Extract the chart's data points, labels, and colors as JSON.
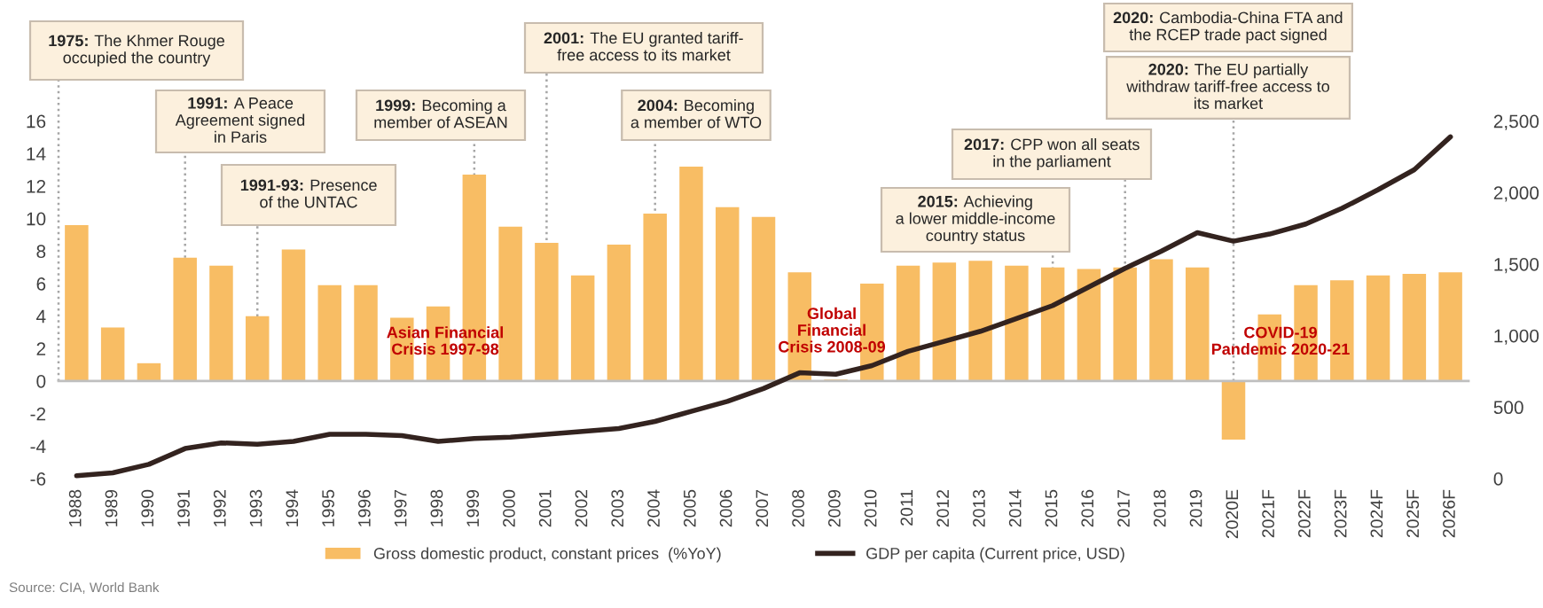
{
  "chart_data": {
    "type": "bar",
    "categories": [
      "1988",
      "1989",
      "1990",
      "1991",
      "1992",
      "1993",
      "1994",
      "1995",
      "1996",
      "1997",
      "1998",
      "1999",
      "2000",
      "2001",
      "2002",
      "2003",
      "2004",
      "2005",
      "2006",
      "2007",
      "2008",
      "2009",
      "2010",
      "2011",
      "2012",
      "2013",
      "2014",
      "2015",
      "2016",
      "2017",
      "2018",
      "2019",
      "2020E",
      "2021F",
      "2022F",
      "2023F",
      "2024F",
      "2025F",
      "2026F"
    ],
    "series": [
      {
        "name": "Gross domestic product, constant prices  (%YoY)",
        "color": "#f8bd64",
        "values": [
          9.6,
          3.3,
          1.1,
          7.6,
          7.1,
          4.0,
          8.1,
          5.9,
          5.9,
          3.9,
          4.6,
          12.7,
          9.5,
          8.5,
          6.5,
          8.4,
          10.3,
          13.2,
          10.7,
          10.1,
          6.7,
          0.1,
          6.0,
          7.1,
          7.3,
          7.4,
          7.1,
          7.0,
          6.9,
          7.0,
          7.5,
          7.0,
          -3.6,
          4.1,
          5.9,
          6.2,
          6.5,
          6.6,
          6.7
        ]
      },
      {
        "name": "GDP per capita (Current price, USD)",
        "type": "line",
        "axis": "y2",
        "color": "#33231f",
        "values": [
          20,
          40,
          100,
          210,
          250,
          240,
          260,
          310,
          310,
          300,
          260,
          280,
          290,
          310,
          330,
          350,
          400,
          470,
          540,
          630,
          740,
          730,
          790,
          890,
          960,
          1030,
          1120,
          1210,
          1340,
          1470,
          1590,
          1720,
          1660,
          1710,
          1780,
          1890,
          2020,
          2160,
          2390
        ]
      }
    ],
    "ylim": [
      -6,
      16
    ],
    "yticks": [
      -6,
      -4,
      -2,
      0,
      2,
      4,
      6,
      8,
      10,
      12,
      14,
      16
    ],
    "y2lim": [
      0,
      2500
    ],
    "y2ticks": [
      0,
      500,
      {
        "value": 1000,
        "label": "1,000"
      },
      {
        "value": 1500,
        "label": "1,500"
      },
      {
        "value": 2000,
        "label": "2,000"
      },
      {
        "value": 2500,
        "label": "2,500"
      }
    ],
    "ref_lines": [
      {
        "axis": "x",
        "value": null,
        "label": "1975: The Khmer Rouge\noccupied the country",
        "color": "#a6a6a6",
        "line_style": "dotted"
      },
      {
        "axis": "x",
        "value": "1991",
        "label": "1991: A Peace\nAgreement signed\nin Paris",
        "color": "#a6a6a6",
        "line_style": "dotted"
      },
      {
        "axis": "x",
        "value": "1993",
        "label": "1991-93: Presence\nof the UNTAC",
        "color": "#a6a6a6",
        "line_style": "dotted"
      },
      {
        "axis": "x",
        "value": "1999",
        "label": "1999: Becoming a\nmember of ASEAN",
        "color": "#a6a6a6",
        "line_style": "dotted"
      },
      {
        "axis": "x",
        "value": "2001",
        "label": "2001: The EU granted tariff-\nfree access to its market",
        "color": "#a6a6a6",
        "line_style": "dotted"
      },
      {
        "axis": "x",
        "value": "2004",
        "label": "2004: Becoming\na member of WTO",
        "color": "#a6a6a6",
        "line_style": "dotted"
      },
      {
        "axis": "x",
        "value": "2015",
        "label": "2015: Achieving\na lower middle-income\ncountry status",
        "color": "#a6a6a6",
        "line_style": "dotted"
      },
      {
        "axis": "x",
        "value": "2017",
        "label": "2017: CPP won all seats\nin the parliament",
        "color": "#a6a6a6",
        "line_style": "dotted"
      },
      {
        "axis": "x",
        "value": "2020E",
        "label": "2020: The EU partially\nwithdraw tariff-free access to\nits market",
        "color": "#a6a6a6",
        "line_style": "dotted"
      }
    ],
    "annotations": [
      "Asian Financial\nCrisis 1997-98",
      "Global\nFinancial\nCrisis 2008-09",
      "COVID-19\nPandemic 2020-21",
      "2020: Cambodia-China FTA and\nthe RCEP trade pact signed",
      "Source: CIA, World Bank"
    ],
    "legend": "bottom"
  }
}
